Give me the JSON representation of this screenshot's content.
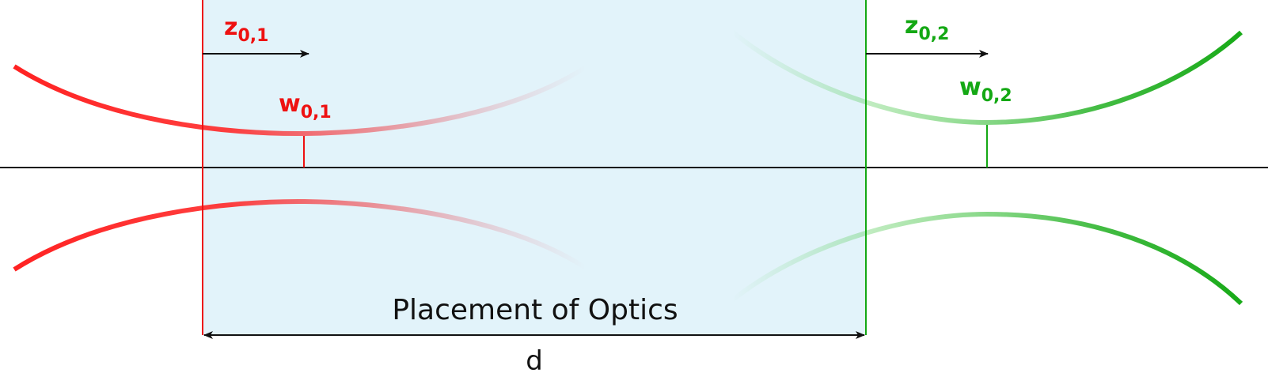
{
  "region_label": "Placement of Optics",
  "distance_label": "d",
  "beam1": {
    "z_label": {
      "base": "z",
      "sub": "0,1"
    },
    "w_label": {
      "base": "w",
      "sub": "0,1"
    },
    "color": "#ff2a2a"
  },
  "beam2": {
    "z_label": {
      "base": "z",
      "sub": "0,2"
    },
    "w_label": {
      "base": "w",
      "sub": "0,2"
    },
    "color": "#1aab1a"
  },
  "colors": {
    "region_fill": "#e2f3fa",
    "axis": "#111111",
    "red": "#ee1111",
    "green": "#14a814"
  },
  "icons": {
    "z1_arrow": "arrow-right-icon",
    "z2_arrow": "arrow-right-icon",
    "d_arrow": "double-arrow-icon"
  }
}
